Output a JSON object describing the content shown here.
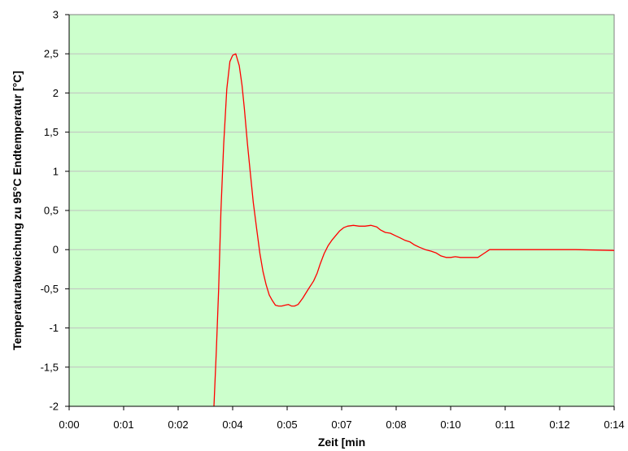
{
  "chart_data": {
    "type": "line",
    "title": "",
    "xlabel": "Zeit [min",
    "ylabel": "Temperaturabweichung zu 95°C Endtemperatur [°C]",
    "x_ticks": [
      "0:00",
      "0:01",
      "0:02",
      "0:04",
      "0:05",
      "0:07",
      "0:08",
      "0:10",
      "0:11",
      "0:12",
      "0:14"
    ],
    "y_ticks": [
      "3",
      "2,5",
      "2",
      "1,5",
      "1",
      "0,5",
      "0",
      "-0,5",
      "-1",
      "-1,5",
      "-2"
    ],
    "xlim": [
      0,
      14
    ],
    "ylim": [
      -2,
      3
    ],
    "grid": true,
    "plot_background": "#ccffcc",
    "grid_color": "#c0c0c0",
    "series": [
      {
        "color": "#ff0000",
        "x": [
          3.72,
          3.78,
          3.84,
          3.9,
          3.97,
          4.05,
          4.13,
          4.2,
          4.28,
          4.37,
          4.44,
          4.5,
          4.58,
          4.66,
          4.73,
          4.82,
          4.9,
          4.98,
          5.06,
          5.14,
          5.22,
          5.3,
          5.38,
          5.46,
          5.54,
          5.63,
          5.71,
          5.79,
          5.88,
          6.0,
          6.15,
          6.28,
          6.37,
          6.45,
          6.55,
          6.65,
          6.75,
          6.85,
          6.95,
          7.05,
          7.15,
          7.3,
          7.45,
          7.6,
          7.75,
          7.9,
          8.0,
          8.12,
          8.25,
          8.37,
          8.5,
          8.62,
          8.75,
          8.87,
          9.0,
          9.15,
          9.3,
          9.42,
          9.55,
          9.68,
          9.8,
          9.92,
          10.05,
          10.2,
          10.35,
          10.5,
          10.65,
          10.8,
          10.95,
          11.1,
          11.2,
          11.35,
          12.0,
          13.0,
          14.0
        ],
        "y": [
          -2.0,
          -1.3,
          -0.5,
          0.5,
          1.35,
          2.05,
          2.4,
          2.48,
          2.5,
          2.35,
          2.1,
          1.8,
          1.35,
          0.95,
          0.6,
          0.25,
          -0.05,
          -0.28,
          -0.45,
          -0.58,
          -0.65,
          -0.71,
          -0.72,
          -0.72,
          -0.71,
          -0.7,
          -0.72,
          -0.72,
          -0.7,
          -0.62,
          -0.5,
          -0.4,
          -0.3,
          -0.18,
          -0.05,
          0.05,
          0.12,
          0.18,
          0.24,
          0.28,
          0.3,
          0.31,
          0.3,
          0.3,
          0.31,
          0.29,
          0.25,
          0.22,
          0.21,
          0.18,
          0.15,
          0.12,
          0.1,
          0.06,
          0.03,
          0.0,
          -0.02,
          -0.04,
          -0.08,
          -0.1,
          -0.1,
          -0.09,
          -0.1,
          -0.1,
          -0.1,
          -0.1,
          -0.05,
          0.0,
          0.0,
          0.0,
          0.0,
          0.0,
          0.0,
          0.0,
          -0.01
        ]
      }
    ]
  }
}
